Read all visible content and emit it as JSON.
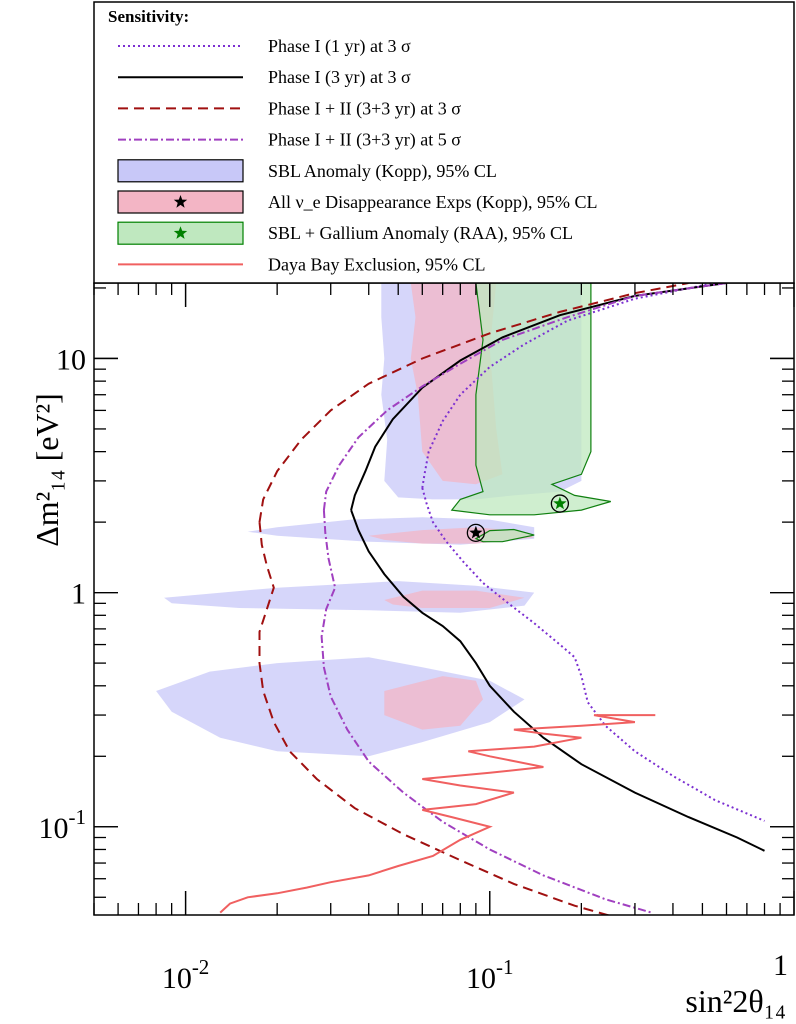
{
  "chart_data": {
    "type": "line",
    "title": "",
    "xlabel": "sin²2θ₁₄",
    "ylabel": "Δm²₁₄ [eV²]",
    "x_scale": "log",
    "y_scale": "log",
    "xlim": [
      0.005,
      1
    ],
    "ylim": [
      0.042,
      21
    ],
    "grid": false,
    "x_tick_labels": [
      {
        "value": 0.01,
        "base": "10",
        "exp": "-2"
      },
      {
        "value": 0.1,
        "base": "10",
        "exp": "-1"
      },
      {
        "value": 1,
        "base": "1",
        "exp": ""
      }
    ],
    "y_tick_labels": [
      {
        "value": 0.1,
        "base": "10",
        "exp": "-1"
      },
      {
        "value": 1,
        "base": "1",
        "exp": ""
      },
      {
        "value": 10,
        "base": "10",
        "exp": ""
      }
    ],
    "legend": {
      "title": "Sensitivity:",
      "placement": "top",
      "entries": [
        {
          "label": "Phase I (1 yr) at 3 σ",
          "kind": "line",
          "color": "#7b2fd1",
          "dash": "dot"
        },
        {
          "label": "Phase I (3 yr) at 3 σ",
          "kind": "line",
          "color": "#000000",
          "dash": "solid"
        },
        {
          "label": "Phase I + II (3+3 yr) at 3 σ",
          "kind": "line",
          "color": "#a01010",
          "dash": "dash"
        },
        {
          "label": "Phase I + II (3+3 yr) at 5 σ",
          "kind": "line",
          "color": "#a040c0",
          "dash": "dashdot"
        },
        {
          "label": "SBL Anomaly (Kopp), 95% CL",
          "kind": "box",
          "fill": "#c8c8f8",
          "stroke": "#000000"
        },
        {
          "label": "All ν_e Disappearance Exps (Kopp), 95% CL",
          "kind": "box-star",
          "fill": "#f3b5c5",
          "stroke": "#000000",
          "star": "#000000"
        },
        {
          "label": "SBL + Gallium Anomaly (RAA), 95% CL",
          "kind": "box-star",
          "fill": "#bfe8bf",
          "stroke": "#008000",
          "star": "#008000"
        },
        {
          "label": "Daya Bay Exclusion, 95% CL",
          "kind": "line",
          "color": "#f06060",
          "dash": "solid"
        }
      ]
    },
    "series": [
      {
        "name": "Phase I (1 yr) at 3 σ",
        "color": "#7b2fd1",
        "dash": "dot",
        "points": [
          [
            0.06,
            2.8
          ],
          [
            0.061,
            3.2
          ],
          [
            0.063,
            4.0
          ],
          [
            0.07,
            5.4
          ],
          [
            0.08,
            7.0
          ],
          [
            0.1,
            9.2
          ],
          [
            0.13,
            11.5
          ],
          [
            0.18,
            14.5
          ],
          [
            0.3,
            18
          ],
          [
            0.55,
            21
          ],
          [
            0.06,
            2.8
          ],
          [
            0.062,
            2.4
          ],
          [
            0.065,
            2.0
          ],
          [
            0.072,
            1.65
          ],
          [
            0.082,
            1.35
          ],
          [
            0.095,
            1.1
          ],
          [
            0.115,
            0.9
          ],
          [
            0.14,
            0.74
          ],
          [
            0.17,
            0.6
          ],
          [
            0.19,
            0.53
          ],
          [
            0.2,
            0.44
          ],
          [
            0.21,
            0.34
          ],
          [
            0.24,
            0.27
          ],
          [
            0.3,
            0.21
          ],
          [
            0.4,
            0.165
          ],
          [
            0.55,
            0.13
          ],
          [
            0.8,
            0.106
          ]
        ]
      },
      {
        "name": "Phase I (3 yr) at 3 σ",
        "color": "#000000",
        "dash": "solid",
        "points": [
          [
            0.035,
            2.25
          ],
          [
            0.036,
            2.6
          ],
          [
            0.039,
            3.3
          ],
          [
            0.042,
            4.2
          ],
          [
            0.048,
            5.5
          ],
          [
            0.06,
            7.5
          ],
          [
            0.08,
            9.8
          ],
          [
            0.11,
            12.3
          ],
          [
            0.17,
            15.3
          ],
          [
            0.3,
            18.5
          ],
          [
            0.6,
            21
          ],
          [
            0.035,
            2.25
          ],
          [
            0.037,
            1.85
          ],
          [
            0.04,
            1.5
          ],
          [
            0.045,
            1.2
          ],
          [
            0.052,
            0.96
          ],
          [
            0.06,
            0.82
          ],
          [
            0.07,
            0.72
          ],
          [
            0.08,
            0.62
          ],
          [
            0.09,
            0.5
          ],
          [
            0.1,
            0.4
          ],
          [
            0.12,
            0.31
          ],
          [
            0.15,
            0.24
          ],
          [
            0.2,
            0.185
          ],
          [
            0.3,
            0.14
          ],
          [
            0.45,
            0.11
          ],
          [
            0.65,
            0.09
          ],
          [
            0.8,
            0.079
          ]
        ]
      },
      {
        "name": "Phase I + II (3+3 yr) at 3 σ",
        "color": "#a01010",
        "dash": "dash",
        "points": [
          [
            0.0175,
            2.0
          ],
          [
            0.018,
            2.5
          ],
          [
            0.02,
            3.3
          ],
          [
            0.024,
            4.5
          ],
          [
            0.03,
            6.0
          ],
          [
            0.04,
            7.8
          ],
          [
            0.06,
            10.0
          ],
          [
            0.1,
            12.8
          ],
          [
            0.17,
            15.8
          ],
          [
            0.3,
            19
          ],
          [
            0.45,
            21
          ],
          [
            0.0175,
            2.0
          ],
          [
            0.0178,
            1.6
          ],
          [
            0.0185,
            1.3
          ],
          [
            0.0195,
            1.05
          ],
          [
            0.0185,
            0.85
          ],
          [
            0.0175,
            0.68
          ],
          [
            0.0175,
            0.5
          ],
          [
            0.018,
            0.38
          ],
          [
            0.0195,
            0.28
          ],
          [
            0.022,
            0.21
          ],
          [
            0.027,
            0.16
          ],
          [
            0.036,
            0.12
          ],
          [
            0.052,
            0.093
          ],
          [
            0.08,
            0.072
          ],
          [
            0.12,
            0.057
          ],
          [
            0.19,
            0.046
          ],
          [
            0.26,
            0.041
          ]
        ]
      },
      {
        "name": "Phase I + II (3+3 yr) at 5 σ",
        "color": "#a040c0",
        "dash": "dashdot",
        "points": [
          [
            0.0285,
            2.25
          ],
          [
            0.029,
            2.7
          ],
          [
            0.032,
            3.5
          ],
          [
            0.037,
            4.6
          ],
          [
            0.046,
            6.0
          ],
          [
            0.06,
            7.6
          ],
          [
            0.08,
            9.5
          ],
          [
            0.11,
            12
          ],
          [
            0.18,
            15
          ],
          [
            0.3,
            18.5
          ],
          [
            0.6,
            21
          ],
          [
            0.0285,
            2.25
          ],
          [
            0.0288,
            1.8
          ],
          [
            0.0295,
            1.4
          ],
          [
            0.031,
            1.05
          ],
          [
            0.029,
            0.85
          ],
          [
            0.028,
            0.65
          ],
          [
            0.0285,
            0.48
          ],
          [
            0.03,
            0.36
          ],
          [
            0.034,
            0.26
          ],
          [
            0.04,
            0.19
          ],
          [
            0.052,
            0.14
          ],
          [
            0.07,
            0.105
          ],
          [
            0.1,
            0.08
          ],
          [
            0.15,
            0.062
          ],
          [
            0.24,
            0.049
          ],
          [
            0.34,
            0.043
          ]
        ]
      },
      {
        "name": "Daya Bay Exclusion, 95% CL",
        "color": "#f06060",
        "dash": "solid",
        "points": [
          [
            0.013,
            0.043
          ],
          [
            0.014,
            0.047
          ],
          [
            0.016,
            0.05
          ],
          [
            0.02,
            0.052
          ],
          [
            0.025,
            0.055
          ],
          [
            0.03,
            0.058
          ],
          [
            0.04,
            0.062
          ],
          [
            0.05,
            0.068
          ],
          [
            0.065,
            0.075
          ],
          [
            0.08,
            0.088
          ],
          [
            0.1,
            0.1
          ],
          [
            0.075,
            0.11
          ],
          [
            0.06,
            0.118
          ],
          [
            0.09,
            0.125
          ],
          [
            0.12,
            0.14
          ],
          [
            0.08,
            0.15
          ],
          [
            0.06,
            0.16
          ],
          [
            0.1,
            0.17
          ],
          [
            0.15,
            0.18
          ],
          [
            0.1,
            0.2
          ],
          [
            0.085,
            0.21
          ],
          [
            0.14,
            0.22
          ],
          [
            0.2,
            0.24
          ],
          [
            0.15,
            0.25
          ],
          [
            0.12,
            0.26
          ],
          [
            0.2,
            0.27
          ],
          [
            0.3,
            0.28
          ],
          [
            0.22,
            0.3
          ],
          [
            0.35,
            0.3
          ]
        ]
      }
    ],
    "regions": [
      {
        "name": "SBL Anomaly (Kopp), 95% CL",
        "fill": "#c8c8f8",
        "stroke": "none",
        "polygons": [
          [
            [
              0.044,
              21
            ],
            [
              0.2,
              21
            ],
            [
              0.2,
              3.0
            ],
            [
              0.17,
              2.7
            ],
            [
              0.12,
              2.6
            ],
            [
              0.09,
              2.5
            ],
            [
              0.065,
              2.5
            ],
            [
              0.05,
              2.55
            ],
            [
              0.045,
              3.0
            ],
            [
              0.046,
              4.5
            ],
            [
              0.044,
              7
            ],
            [
              0.045,
              10
            ],
            [
              0.044,
              15
            ]
          ],
          [
            [
              0.02,
              1.9
            ],
            [
              0.035,
              2.05
            ],
            [
              0.06,
              2.1
            ],
            [
              0.1,
              2.05
            ],
            [
              0.14,
              1.9
            ],
            [
              0.14,
              1.7
            ],
            [
              0.08,
              1.6
            ],
            [
              0.04,
              1.65
            ],
            [
              0.02,
              1.75
            ],
            [
              0.016,
              1.82
            ]
          ],
          [
            [
              0.0085,
              0.95
            ],
            [
              0.02,
              1.05
            ],
            [
              0.05,
              1.12
            ],
            [
              0.09,
              1.07
            ],
            [
              0.14,
              1.0
            ],
            [
              0.13,
              0.88
            ],
            [
              0.08,
              0.82
            ],
            [
              0.04,
              0.84
            ],
            [
              0.015,
              0.86
            ],
            [
              0.009,
              0.9
            ]
          ],
          [
            [
              0.008,
              0.38
            ],
            [
              0.012,
              0.46
            ],
            [
              0.02,
              0.5
            ],
            [
              0.04,
              0.53
            ],
            [
              0.06,
              0.48
            ],
            [
              0.1,
              0.42
            ],
            [
              0.13,
              0.35
            ],
            [
              0.1,
              0.28
            ],
            [
              0.06,
              0.23
            ],
            [
              0.04,
              0.2
            ],
            [
              0.02,
              0.21
            ],
            [
              0.013,
              0.24
            ],
            [
              0.009,
              0.31
            ]
          ]
        ]
      },
      {
        "name": "All ν_e Disappearance Exps (Kopp), 95% CL",
        "fill": "#f3b5c5",
        "stroke": "none",
        "polygons": [
          [
            [
              0.055,
              21
            ],
            [
              0.105,
              21
            ],
            [
              0.1,
              11
            ],
            [
              0.105,
              5
            ],
            [
              0.11,
              3.2
            ],
            [
              0.09,
              2.9
            ],
            [
              0.07,
              3.0
            ],
            [
              0.06,
              4.0
            ],
            [
              0.058,
              7
            ],
            [
              0.055,
              10
            ],
            [
              0.057,
              15
            ]
          ],
          [
            [
              0.04,
              1.75
            ],
            [
              0.06,
              1.85
            ],
            [
              0.09,
              1.9
            ],
            [
              0.13,
              1.82
            ],
            [
              0.14,
              1.72
            ],
            [
              0.09,
              1.62
            ],
            [
              0.06,
              1.62
            ],
            [
              0.045,
              1.68
            ]
          ],
          [
            [
              0.045,
              0.93
            ],
            [
              0.06,
              1.02
            ],
            [
              0.09,
              1.02
            ],
            [
              0.13,
              0.95
            ],
            [
              0.1,
              0.86
            ],
            [
              0.06,
              0.86
            ],
            [
              0.048,
              0.89
            ]
          ],
          [
            [
              0.045,
              0.38
            ],
            [
              0.07,
              0.44
            ],
            [
              0.09,
              0.42
            ],
            [
              0.095,
              0.35
            ],
            [
              0.08,
              0.27
            ],
            [
              0.06,
              0.26
            ],
            [
              0.045,
              0.3
            ]
          ]
        ]
      },
      {
        "name": "SBL + Gallium Anomaly (RAA), 95% CL",
        "fill": "#bfe8bf",
        "stroke": "#108010",
        "polygons": [
          [
            [
              0.09,
              21
            ],
            [
              0.215,
              21
            ],
            [
              0.215,
              4.0
            ],
            [
              0.2,
              3.2
            ],
            [
              0.16,
              2.9
            ],
            [
              0.19,
              2.6
            ],
            [
              0.25,
              2.45
            ],
            [
              0.2,
              2.25
            ],
            [
              0.14,
              2.15
            ],
            [
              0.1,
              2.15
            ],
            [
              0.075,
              2.25
            ],
            [
              0.08,
              2.5
            ],
            [
              0.095,
              2.7
            ],
            [
              0.09,
              3.5
            ],
            [
              0.09,
              7
            ],
            [
              0.095,
              12
            ]
          ],
          [
            [
              0.09,
              1.7
            ],
            [
              0.1,
              1.84
            ],
            [
              0.12,
              1.86
            ],
            [
              0.14,
              1.76
            ],
            [
              0.11,
              1.65
            ],
            [
              0.095,
              1.65
            ]
          ]
        ]
      }
    ],
    "markers": [
      {
        "name": "best-fit All ν_e Disappearance Exps",
        "x": 0.09,
        "y": 1.8,
        "color": "#000000"
      },
      {
        "name": "best-fit SBL + Gallium Anomaly",
        "x": 0.17,
        "y": 2.4,
        "color": "#008000"
      }
    ]
  }
}
